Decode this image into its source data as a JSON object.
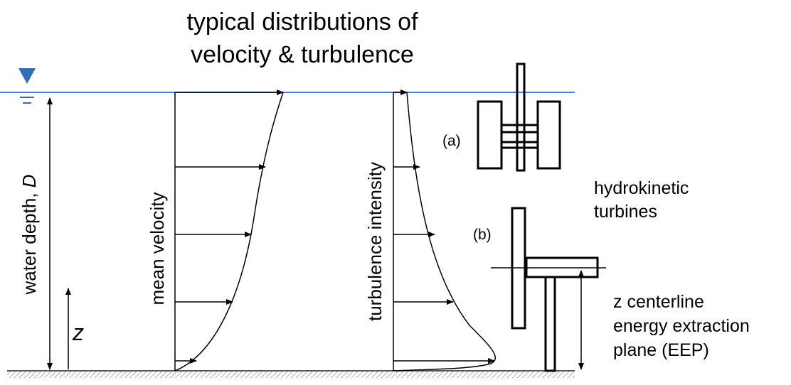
{
  "title": {
    "line1": "typical distributions of",
    "line2": "velocity & turbulence"
  },
  "depth_label": {
    "text": "water depth, ",
    "variable": "D"
  },
  "height_label": "z",
  "profiles": {
    "velocity": "mean velocity",
    "turbulence": "turbulence intensity"
  },
  "turbines": {
    "a": "(a)",
    "b": "(b)",
    "caption": [
      "hydrokinetic",
      "turbines"
    ]
  },
  "eep_label": [
    "z centerline",
    "energy extraction",
    "plane (EEP)"
  ]
}
